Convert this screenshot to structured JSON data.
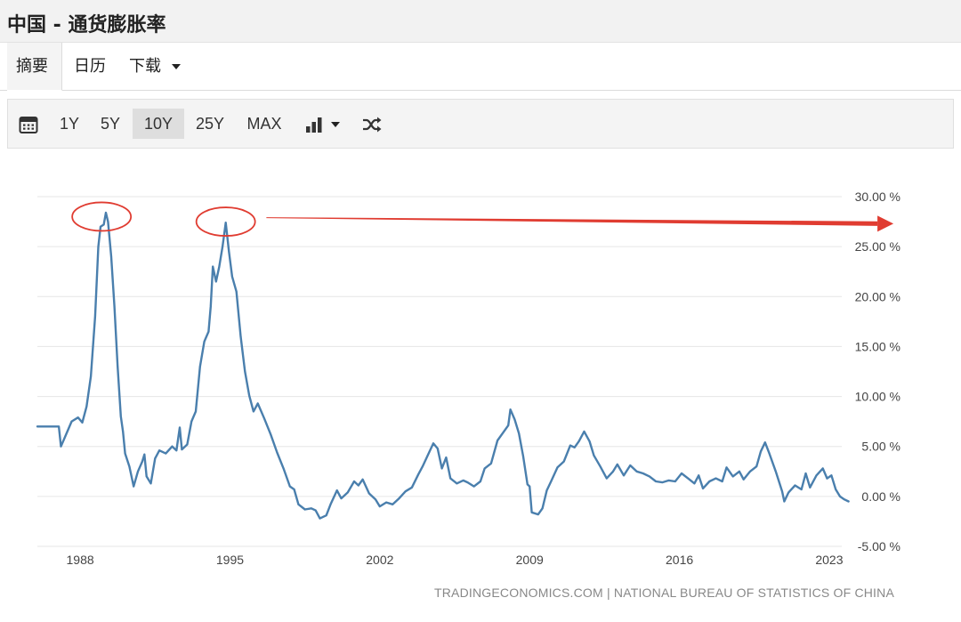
{
  "header": {
    "title": "中国 - 通货膨胀率"
  },
  "tabs": [
    {
      "label": "摘要"
    },
    {
      "label": "日历"
    },
    {
      "label": "下载"
    }
  ],
  "toolbar": {
    "ranges": [
      "1Y",
      "5Y",
      "10Y",
      "25Y",
      "MAX"
    ],
    "active_range": "10Y",
    "icons": [
      "calendar-icon",
      "chart-type-icon",
      "shuffle-icon"
    ]
  },
  "source": "TRADINGECONOMICS.COM | NATIONAL BUREAU OF STATISTICS OF CHINA",
  "chart_data": {
    "type": "line",
    "title": "",
    "xlabel": "",
    "ylabel": "",
    "x_ticks": [
      1988,
      1995,
      2002,
      2009,
      2016,
      2023
    ],
    "y_ticks": [
      "30.00 %",
      "25.00 %",
      "20.00 %",
      "15.00 %",
      "10.00 %",
      "5.00 %",
      "0.00 %",
      "-5.00 %"
    ],
    "ylim": [
      -5,
      30
    ],
    "xlim": [
      1986.0,
      2024.0
    ],
    "grid": true,
    "line_color": "#4a7fad",
    "annotation_color": "#e03c31",
    "annotations": [
      {
        "type": "ellipse",
        "x": 1989.0,
        "y": 28.0
      },
      {
        "type": "ellipse",
        "x": 1994.8,
        "y": 27.5
      },
      {
        "type": "arrow",
        "from": [
          1996.7,
          27.9
        ],
        "to": [
          2026.0,
          27.3
        ]
      }
    ],
    "series": [
      {
        "points": [
          [
            1986.0,
            7.0
          ],
          [
            1987.0,
            7.0
          ],
          [
            1987.1,
            5.0
          ],
          [
            1987.3,
            6.0
          ],
          [
            1987.6,
            7.5
          ],
          [
            1987.9,
            7.9
          ],
          [
            1988.1,
            7.4
          ],
          [
            1988.3,
            9.0
          ],
          [
            1988.5,
            12.0
          ],
          [
            1988.7,
            18.0
          ],
          [
            1988.85,
            25.0
          ],
          [
            1988.95,
            27.0
          ],
          [
            1989.1,
            27.2
          ],
          [
            1989.2,
            28.4
          ],
          [
            1989.3,
            27.5
          ],
          [
            1989.45,
            24.0
          ],
          [
            1989.6,
            19.0
          ],
          [
            1989.75,
            13.0
          ],
          [
            1989.9,
            8.0
          ],
          [
            1990.0,
            6.5
          ],
          [
            1990.1,
            4.3
          ],
          [
            1990.3,
            3.0
          ],
          [
            1990.5,
            1.0
          ],
          [
            1990.7,
            2.5
          ],
          [
            1990.9,
            3.5
          ],
          [
            1991.0,
            4.2
          ],
          [
            1991.1,
            2.0
          ],
          [
            1991.3,
            1.3
          ],
          [
            1991.5,
            3.8
          ],
          [
            1991.7,
            4.6
          ],
          [
            1992.0,
            4.3
          ],
          [
            1992.3,
            5.0
          ],
          [
            1992.5,
            4.6
          ],
          [
            1992.65,
            6.9
          ],
          [
            1992.75,
            4.7
          ],
          [
            1993.0,
            5.2
          ],
          [
            1993.2,
            7.5
          ],
          [
            1993.4,
            8.5
          ],
          [
            1993.6,
            13.0
          ],
          [
            1993.8,
            15.5
          ],
          [
            1994.0,
            16.5
          ],
          [
            1994.1,
            19.0
          ],
          [
            1994.2,
            23.0
          ],
          [
            1994.35,
            21.5
          ],
          [
            1994.5,
            23.0
          ],
          [
            1994.65,
            25.0
          ],
          [
            1994.8,
            27.4
          ],
          [
            1994.95,
            24.5
          ],
          [
            1995.1,
            22.0
          ],
          [
            1995.3,
            20.5
          ],
          [
            1995.5,
            16.0
          ],
          [
            1995.7,
            12.5
          ],
          [
            1995.9,
            10.1
          ],
          [
            1996.1,
            8.5
          ],
          [
            1996.3,
            9.3
          ],
          [
            1996.6,
            7.8
          ],
          [
            1996.9,
            6.2
          ],
          [
            1997.2,
            4.4
          ],
          [
            1997.5,
            2.8
          ],
          [
            1997.8,
            1.0
          ],
          [
            1998.0,
            0.7
          ],
          [
            1998.2,
            -0.8
          ],
          [
            1998.5,
            -1.3
          ],
          [
            1998.8,
            -1.2
          ],
          [
            1999.0,
            -1.4
          ],
          [
            1999.2,
            -2.2
          ],
          [
            1999.5,
            -1.9
          ],
          [
            1999.7,
            -0.8
          ],
          [
            2000.0,
            0.6
          ],
          [
            2000.2,
            -0.2
          ],
          [
            2000.5,
            0.4
          ],
          [
            2000.8,
            1.5
          ],
          [
            2001.0,
            1.1
          ],
          [
            2001.2,
            1.7
          ],
          [
            2001.5,
            0.3
          ],
          [
            2001.8,
            -0.3
          ],
          [
            2002.0,
            -1.0
          ],
          [
            2002.3,
            -0.6
          ],
          [
            2002.6,
            -0.8
          ],
          [
            2002.9,
            -0.2
          ],
          [
            2003.2,
            0.5
          ],
          [
            2003.5,
            0.9
          ],
          [
            2003.8,
            2.2
          ],
          [
            2004.0,
            3.0
          ],
          [
            2004.3,
            4.4
          ],
          [
            2004.5,
            5.3
          ],
          [
            2004.7,
            4.8
          ],
          [
            2004.9,
            2.8
          ],
          [
            2005.1,
            3.9
          ],
          [
            2005.3,
            1.8
          ],
          [
            2005.6,
            1.3
          ],
          [
            2005.9,
            1.6
          ],
          [
            2006.1,
            1.4
          ],
          [
            2006.4,
            1.0
          ],
          [
            2006.7,
            1.5
          ],
          [
            2006.9,
            2.8
          ],
          [
            2007.2,
            3.3
          ],
          [
            2007.5,
            5.6
          ],
          [
            2007.8,
            6.5
          ],
          [
            2008.0,
            7.1
          ],
          [
            2008.1,
            8.7
          ],
          [
            2008.3,
            7.7
          ],
          [
            2008.5,
            6.3
          ],
          [
            2008.7,
            4.0
          ],
          [
            2008.9,
            1.2
          ],
          [
            2009.0,
            1.0
          ],
          [
            2009.1,
            -1.6
          ],
          [
            2009.4,
            -1.8
          ],
          [
            2009.6,
            -1.2
          ],
          [
            2009.8,
            0.6
          ],
          [
            2010.0,
            1.5
          ],
          [
            2010.3,
            2.9
          ],
          [
            2010.6,
            3.5
          ],
          [
            2010.9,
            5.1
          ],
          [
            2011.1,
            4.9
          ],
          [
            2011.3,
            5.5
          ],
          [
            2011.55,
            6.5
          ],
          [
            2011.8,
            5.5
          ],
          [
            2012.0,
            4.1
          ],
          [
            2012.3,
            3.0
          ],
          [
            2012.6,
            1.8
          ],
          [
            2012.9,
            2.5
          ],
          [
            2013.1,
            3.2
          ],
          [
            2013.4,
            2.1
          ],
          [
            2013.7,
            3.1
          ],
          [
            2014.0,
            2.5
          ],
          [
            2014.3,
            2.3
          ],
          [
            2014.6,
            2.0
          ],
          [
            2014.9,
            1.5
          ],
          [
            2015.2,
            1.4
          ],
          [
            2015.5,
            1.6
          ],
          [
            2015.8,
            1.5
          ],
          [
            2016.1,
            2.3
          ],
          [
            2016.4,
            1.8
          ],
          [
            2016.7,
            1.3
          ],
          [
            2016.9,
            2.1
          ],
          [
            2017.1,
            0.8
          ],
          [
            2017.4,
            1.5
          ],
          [
            2017.7,
            1.8
          ],
          [
            2018.0,
            1.5
          ],
          [
            2018.2,
            2.9
          ],
          [
            2018.5,
            2.0
          ],
          [
            2018.8,
            2.5
          ],
          [
            2019.0,
            1.7
          ],
          [
            2019.3,
            2.5
          ],
          [
            2019.6,
            3.0
          ],
          [
            2019.8,
            4.5
          ],
          [
            2020.0,
            5.4
          ],
          [
            2020.2,
            4.3
          ],
          [
            2020.5,
            2.5
          ],
          [
            2020.8,
            0.5
          ],
          [
            2020.9,
            -0.5
          ],
          [
            2021.1,
            0.4
          ],
          [
            2021.4,
            1.1
          ],
          [
            2021.7,
            0.7
          ],
          [
            2021.9,
            2.3
          ],
          [
            2022.1,
            0.9
          ],
          [
            2022.4,
            2.1
          ],
          [
            2022.7,
            2.8
          ],
          [
            2022.9,
            1.8
          ],
          [
            2023.1,
            2.1
          ],
          [
            2023.3,
            0.7
          ],
          [
            2023.5,
            0.0
          ],
          [
            2023.7,
            -0.3
          ],
          [
            2023.9,
            -0.5
          ]
        ]
      }
    ]
  }
}
